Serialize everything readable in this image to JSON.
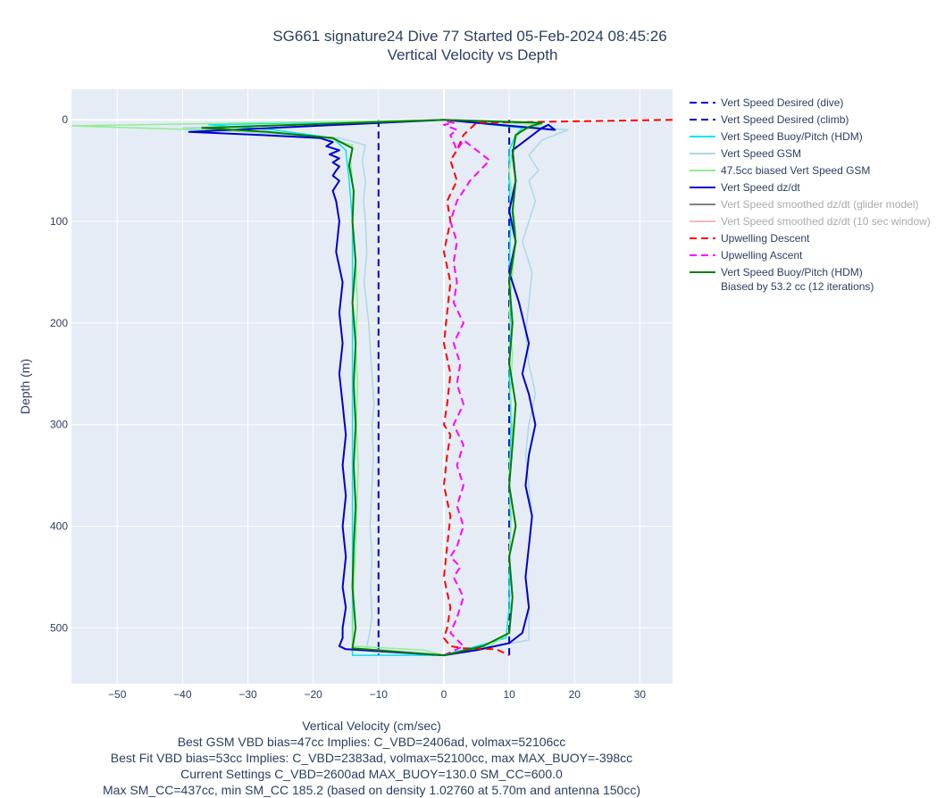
{
  "chart_data": {
    "type": "line",
    "title": "SG661 signature24 Dive 77 Started 05-Feb-2024 08:45:26",
    "subtitle": "Vertical Velocity vs Depth",
    "xlabel": "Vertical Velocity (cm/sec)",
    "ylabel": "Depth (m)",
    "xlim": [
      -57,
      35
    ],
    "ylim": [
      555,
      -30
    ],
    "y_reversed": true,
    "grid": true,
    "legend_position": "right",
    "x_ticks": [
      -50,
      -40,
      -30,
      -20,
      -10,
      0,
      10,
      20,
      30
    ],
    "x_tick_labels": [
      "−50",
      "−40",
      "−30",
      "−20",
      "−10",
      "0",
      "10",
      "20",
      "30"
    ],
    "y_ticks": [
      0,
      100,
      200,
      300,
      400,
      500
    ],
    "y_tick_labels": [
      "0",
      "100",
      "200",
      "300",
      "400",
      "500"
    ],
    "series": [
      {
        "name": "Vert Speed Desired (dive)",
        "color": "#0000cd",
        "dash": "dash",
        "width": 2,
        "x": [
          -10,
          -10
        ],
        "y": [
          0,
          527
        ]
      },
      {
        "name": "Vert Speed Desired (climb)",
        "color": "#0000cd",
        "dash": "dash",
        "width": 2,
        "x": [
          10,
          10
        ],
        "y": [
          527,
          0
        ]
      },
      {
        "name": "Vert Speed Buoy/Pitch (HDM)",
        "color": "#00e5ee",
        "dash": "solid",
        "width": 1.5,
        "x": [
          0,
          -36,
          -26,
          -17,
          -15,
          -14.5,
          -14,
          -14,
          -14,
          -14,
          -14,
          -14,
          -14,
          -14,
          -14,
          0,
          9.5,
          10,
          10,
          10.2,
          10,
          10.3,
          10,
          10.2,
          10,
          10.2,
          10,
          10,
          11,
          12,
          0
        ],
        "y": [
          0,
          5,
          10,
          18,
          30,
          60,
          100,
          150,
          200,
          250,
          300,
          350,
          400,
          450,
          527,
          527,
          510,
          480,
          450,
          400,
          350,
          300,
          250,
          200,
          150,
          100,
          60,
          30,
          15,
          8,
          0
        ]
      },
      {
        "name": "Vert Speed GSM",
        "color": "#add8e6",
        "dash": "solid",
        "width": 1.5,
        "x": [
          0,
          -40,
          -31,
          -16,
          -12,
          -12.5,
          -12,
          -12.3,
          -12,
          -11.8,
          -12.2,
          -11.5,
          -11,
          -10.7,
          -11,
          -10.8,
          -11,
          -11.3,
          -11,
          -11.2,
          -11,
          -11.5,
          -12,
          0,
          13,
          13,
          12.5,
          13,
          13.5,
          13,
          12.5,
          13,
          14,
          13,
          12.5,
          13,
          13.5,
          12,
          13,
          14,
          13,
          14.5,
          13,
          15,
          19,
          0
        ],
        "y": [
          0,
          8,
          12,
          18,
          25,
          40,
          60,
          80,
          100,
          130,
          160,
          200,
          250,
          280,
          300,
          330,
          360,
          400,
          430,
          460,
          490,
          510,
          522,
          527,
          512,
          480,
          450,
          420,
          390,
          360,
          330,
          300,
          270,
          240,
          210,
          180,
          150,
          120,
          100,
          80,
          60,
          50,
          35,
          20,
          10,
          0
        ]
      },
      {
        "name": "47.5cc biased Vert Speed GSM",
        "color": "#90ee90",
        "dash": "solid",
        "width": 1.5,
        "x": [
          0,
          -57,
          -27,
          -18,
          -14,
          -14.3,
          -14,
          -13.8,
          -14,
          -13.5,
          -13.2,
          -13.5,
          -13.2,
          -13.4,
          -13.1,
          -13.3,
          -13.5,
          -13.8,
          -14,
          -3,
          0,
          7,
          10,
          10.5,
          10,
          10.3,
          10,
          10.5,
          10.2,
          10.5,
          10,
          10.5,
          11,
          10.5,
          10,
          10.5,
          11,
          12,
          15,
          0
        ],
        "y": [
          0,
          6,
          12,
          18,
          25,
          40,
          60,
          80,
          100,
          140,
          180,
          220,
          260,
          300,
          340,
          380,
          420,
          460,
          518,
          522,
          527,
          518,
          505,
          470,
          430,
          390,
          350,
          310,
          270,
          230,
          190,
          150,
          110,
          80,
          50,
          30,
          18,
          10,
          5,
          0
        ]
      },
      {
        "name": "Vert Speed dz/dt",
        "color": "#0000cd",
        "dash": "solid",
        "width": 2,
        "x": [
          0,
          -39,
          -28,
          -19,
          -17,
          -18,
          -16,
          -17.5,
          -16,
          -17,
          -16,
          -16.5,
          -17,
          -16,
          -17,
          -16.5,
          -16,
          -16.5,
          -15.5,
          -16,
          -15.5,
          -16,
          -15.5,
          -15,
          -15.5,
          -15,
          -15.5,
          -15,
          -15.5,
          -15,
          -15.5,
          -15.5,
          -16,
          -15,
          0,
          5,
          10,
          12,
          13,
          12.5,
          13,
          13.5,
          12.5,
          13,
          14,
          13,
          12,
          13,
          11.5,
          10,
          11,
          10,
          11,
          10.5,
          15,
          16,
          17,
          0
        ],
        "y": [
          0,
          12,
          15,
          18,
          22,
          26,
          30,
          34,
          38,
          42,
          46,
          50,
          55,
          60,
          70,
          80,
          100,
          130,
          160,
          190,
          220,
          250,
          280,
          310,
          340,
          370,
          400,
          430,
          460,
          480,
          500,
          510,
          518,
          521,
          527,
          522,
          515,
          505,
          480,
          450,
          420,
          390,
          360,
          330,
          300,
          270,
          250,
          220,
          180,
          150,
          120,
          90,
          60,
          30,
          8,
          5,
          10,
          0
        ]
      },
      {
        "name": "Vert Speed smoothed dz/dt (glider model)",
        "color": "#808080",
        "dash": "solid",
        "width": 1.5,
        "x": [],
        "y": []
      },
      {
        "name": "Vert Speed smoothed dz/dt (10 sec window)",
        "color": "#ffb6c1",
        "dash": "solid",
        "width": 1.5,
        "x": [],
        "y": []
      },
      {
        "name": "Upwelling Descent",
        "color": "#ff0000",
        "dash": "dash",
        "width": 2,
        "x": [
          35,
          5,
          3,
          2,
          1,
          2,
          0.5,
          1,
          0,
          1,
          0.5,
          0,
          1,
          0.5,
          0,
          1,
          0.5,
          0,
          1,
          0.5,
          0,
          1,
          0.5,
          0,
          1,
          3,
          8,
          10
        ],
        "y": [
          0,
          3,
          15,
          30,
          40,
          60,
          80,
          100,
          130,
          160,
          190,
          220,
          250,
          280,
          300,
          310,
          330,
          360,
          390,
          420,
          450,
          480,
          500,
          510,
          518,
          520,
          521,
          527
        ]
      },
      {
        "name": "Upwelling Ascent",
        "color": "#ff00ff",
        "dash": "dash",
        "width": 2,
        "x": [
          0,
          3,
          1,
          2,
          3,
          1.5,
          2.5,
          1,
          2,
          3,
          2,
          3,
          2,
          3,
          1.5,
          3,
          2,
          2.5,
          1.5,
          3,
          1.5,
          2,
          1.5,
          2,
          1,
          2,
          4,
          7,
          3,
          2,
          1,
          2,
          0,
          1.5,
          0,
          0
        ],
        "y": [
          527,
          518,
          505,
          490,
          470,
          450,
          440,
          430,
          420,
          400,
          380,
          360,
          340,
          320,
          300,
          280,
          260,
          240,
          220,
          200,
          180,
          160,
          140,
          120,
          100,
          80,
          60,
          40,
          20,
          30,
          15,
          10,
          5,
          3,
          1,
          0
        ]
      },
      {
        "name": "Vert Speed Buoy/Pitch (HDM)",
        "name2": "Biased by 53.2 cc (12 iterations)",
        "color": "#008000",
        "dash": "solid",
        "width": 2,
        "x": [
          0,
          -37,
          -27,
          -17,
          -14,
          -14.5,
          -13.8,
          -14,
          -13.5,
          -14,
          -13.5,
          -13.8,
          -13.5,
          -13.8,
          -13.5,
          -13.8,
          -14,
          -13.5,
          -14,
          0,
          6,
          10,
          10.5,
          10,
          11,
          10,
          10.5,
          11,
          10,
          10.5,
          10,
          11,
          10.5,
          11,
          10.5,
          11,
          13,
          15,
          0
        ],
        "y": [
          0,
          8,
          12,
          18,
          28,
          45,
          70,
          100,
          140,
          180,
          220,
          260,
          300,
          340,
          380,
          420,
          460,
          500,
          520,
          527,
          518,
          505,
          470,
          430,
          400,
          360,
          320,
          280,
          240,
          200,
          160,
          120,
          90,
          60,
          35,
          15,
          7,
          3,
          0
        ]
      }
    ]
  },
  "legend": [
    {
      "label": "Vert Speed Desired (dive)",
      "color": "#0000cd",
      "dash": "dash",
      "dim": false
    },
    {
      "label": "Vert Speed Desired (climb)",
      "color": "#0000cd",
      "dash": "dash",
      "dim": false
    },
    {
      "label": "Vert Speed Buoy/Pitch (HDM)",
      "color": "#00e5ee",
      "dash": "solid",
      "dim": false
    },
    {
      "label": "Vert Speed GSM",
      "color": "#add8e6",
      "dash": "solid",
      "dim": false
    },
    {
      "label": "47.5cc biased Vert Speed GSM",
      "color": "#90ee90",
      "dash": "solid",
      "dim": false
    },
    {
      "label": "Vert Speed dz/dt",
      "color": "#0000cd",
      "dash": "solid",
      "dim": false
    },
    {
      "label": "Vert Speed smoothed dz/dt (glider model)",
      "color": "#808080",
      "dash": "solid",
      "dim": true
    },
    {
      "label": "Vert Speed smoothed dz/dt (10 sec window)",
      "color": "#ffb6c1",
      "dash": "solid",
      "dim": true
    },
    {
      "label": "Upwelling Descent",
      "color": "#ff0000",
      "dash": "dash",
      "dim": false
    },
    {
      "label": "Upwelling Ascent",
      "color": "#ff00ff",
      "dash": "dash",
      "dim": false
    },
    {
      "label": "Vert Speed Buoy/Pitch (HDM)",
      "label2": "Biased by 53.2 cc (12 iterations)",
      "color": "#008000",
      "dash": "solid",
      "dim": false
    }
  ],
  "footer": {
    "line1": "Best GSM VBD bias=47cc Implies: C_VBD=2406ad, volmax=52106cc",
    "line2": "Best Fit VBD bias=53cc Implies: C_VBD=2383ad, volmax=52100cc, max MAX_BUOY=-398cc",
    "line3": "Current Settings C_VBD=2600ad MAX_BUOY=130.0 SM_CC=600.0",
    "line4": "Max SM_CC=437cc, min SM_CC 185.2 (based on density 1.02760 at 5.70m and antenna 150cc)"
  },
  "colors": {
    "plot_bg": "#e5ecf6",
    "grid": "#ffffff",
    "text": "#2a3f5f"
  }
}
